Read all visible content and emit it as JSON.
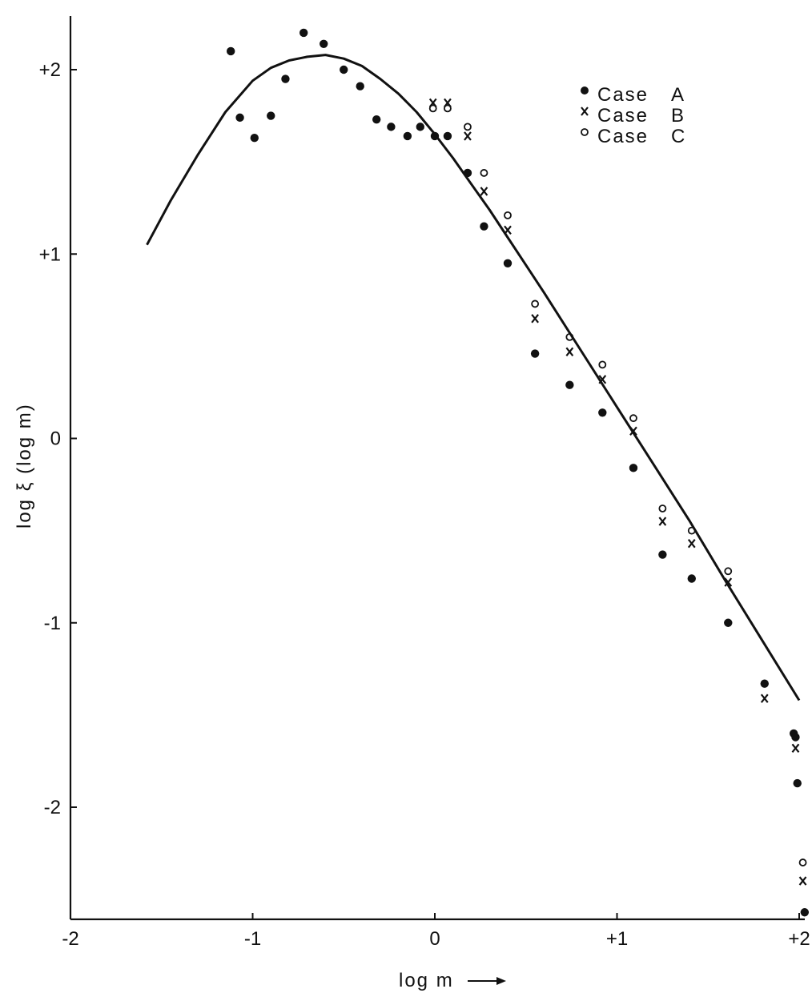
{
  "chart_data": {
    "type": "scatter",
    "title": "",
    "xlabel": "log m",
    "ylabel": "log ξ (log m)",
    "xlim": [
      -2,
      2
    ],
    "ylim": [
      -2.6,
      2.3
    ],
    "x_ticks": [
      {
        "value": -2,
        "label": "-2"
      },
      {
        "value": -1,
        "label": "-1"
      },
      {
        "value": 0,
        "label": "0"
      },
      {
        "value": 1,
        "label": "+1"
      },
      {
        "value": 2,
        "label": "+2"
      }
    ],
    "y_ticks": [
      {
        "value": 2,
        "label": "+2"
      },
      {
        "value": 1,
        "label": "+1"
      },
      {
        "value": 0,
        "label": "0"
      },
      {
        "value": -1,
        "label": "-1"
      },
      {
        "value": -2,
        "label": "-2"
      }
    ],
    "legend_position": "top-right",
    "legend": [
      {
        "marker": "dot",
        "case": "Case",
        "letter": "A"
      },
      {
        "marker": "cross",
        "case": "Case",
        "letter": "B"
      },
      {
        "marker": "circle",
        "case": "Case",
        "letter": "C"
      }
    ],
    "curve": {
      "x": [
        -1.58,
        -1.45,
        -1.3,
        -1.15,
        -1.0,
        -0.9,
        -0.8,
        -0.7,
        -0.6,
        -0.5,
        -0.4,
        -0.3,
        -0.2,
        -0.1,
        0.0,
        0.1,
        0.2,
        0.3,
        0.4,
        0.5,
        0.6,
        0.8,
        1.0,
        1.2,
        1.4,
        1.6,
        1.8,
        2.0
      ],
      "y": [
        1.05,
        1.29,
        1.54,
        1.77,
        1.94,
        2.01,
        2.05,
        2.07,
        2.08,
        2.06,
        2.02,
        1.95,
        1.87,
        1.77,
        1.65,
        1.52,
        1.38,
        1.24,
        1.09,
        0.94,
        0.79,
        0.48,
        0.17,
        -0.14,
        -0.45,
        -0.78,
        -1.1,
        -1.42
      ]
    },
    "series": [
      {
        "name": "Case A",
        "marker": "dot",
        "x": [
          -1.12,
          -1.07,
          -0.99,
          -0.9,
          -0.82,
          -0.72,
          -0.61,
          -0.5,
          -0.41,
          -0.32,
          -0.24,
          -0.15,
          -0.08,
          0.0,
          0.07,
          0.18,
          0.27,
          0.4,
          0.55,
          0.74,
          0.92,
          1.09,
          1.25,
          1.41,
          1.61,
          1.81,
          1.97,
          1.98,
          1.99,
          2.03
        ],
        "y": [
          2.1,
          1.74,
          1.63,
          1.75,
          1.95,
          2.2,
          2.14,
          2.0,
          1.91,
          1.73,
          1.69,
          1.64,
          1.69,
          1.64,
          1.64,
          1.44,
          1.15,
          0.95,
          0.46,
          0.29,
          0.14,
          -0.16,
          -0.63,
          -0.76,
          -1.0,
          -1.33,
          -1.6,
          -1.62,
          -1.87,
          -2.57
        ]
      },
      {
        "name": "Case B",
        "marker": "cross",
        "x": [
          -0.01,
          0.07,
          0.18,
          0.27,
          0.4,
          0.55,
          0.74,
          0.92,
          1.09,
          1.25,
          1.41,
          1.61,
          1.81,
          1.98,
          2.02
        ],
        "y": [
          1.82,
          1.82,
          1.64,
          1.34,
          1.13,
          0.65,
          0.47,
          0.32,
          0.04,
          -0.45,
          -0.57,
          -0.78,
          -1.41,
          -1.68,
          -2.4
        ]
      },
      {
        "name": "Case C",
        "marker": "circle",
        "x": [
          -0.01,
          0.07,
          0.18,
          0.27,
          0.4,
          0.55,
          0.74,
          0.92,
          1.09,
          1.25,
          1.41,
          1.61,
          2.02
        ],
        "y": [
          1.79,
          1.79,
          1.69,
          1.44,
          1.21,
          0.73,
          0.55,
          0.4,
          0.11,
          -0.38,
          -0.5,
          -0.72,
          -2.3
        ]
      }
    ]
  }
}
